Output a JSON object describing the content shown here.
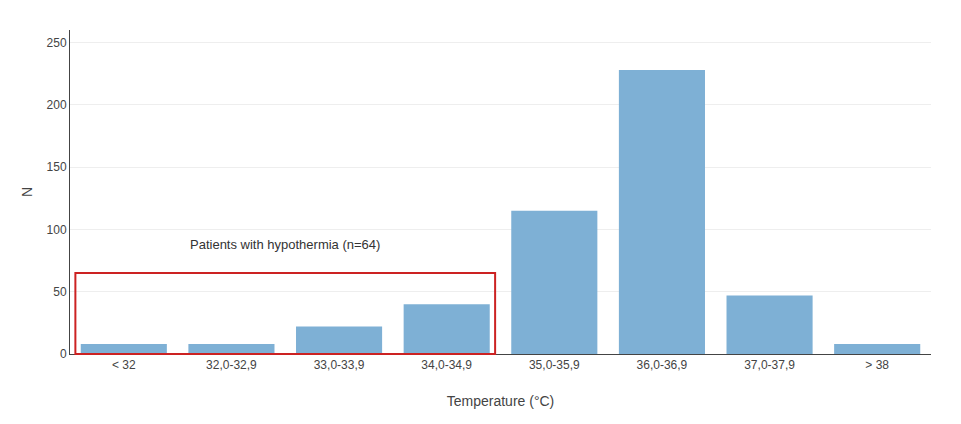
{
  "chart_data": {
    "type": "bar",
    "categories": [
      "< 32",
      "32,0-32,9",
      "33,0-33,9",
      "34,0-34,9",
      "35,0-35,9",
      "36,0-36,9",
      "37,0-37,9",
      "> 38"
    ],
    "values": [
      8,
      8,
      22,
      40,
      115,
      228,
      47,
      8
    ],
    "color": "#7EB0D5",
    "xlabel": "Temperature (°C)",
    "ylabel": "N",
    "annotations": [
      "Patients with hypothermia (n=64)"
    ],
    "ylim": [
      0,
      260
    ],
    "yticks": [
      0,
      50,
      100,
      150,
      200,
      250
    ],
    "grid": true
  }
}
